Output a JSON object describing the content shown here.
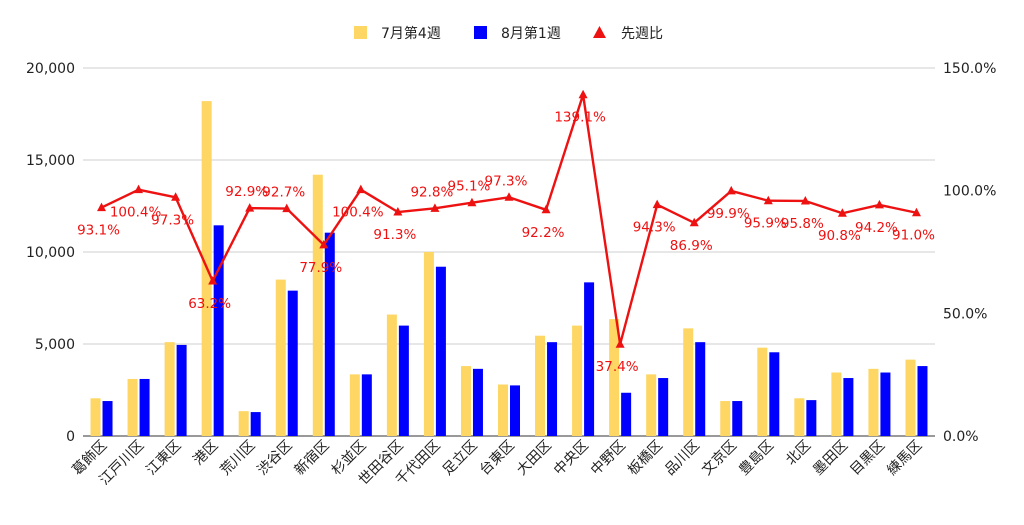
{
  "chart_data": {
    "type": "bar",
    "categories": [
      "葛飾区",
      "江戸川区",
      "江東区",
      "港区",
      "荒川区",
      "渋谷区",
      "新宿区",
      "杉並区",
      "世田谷区",
      "千代田区",
      "足立区",
      "台東区",
      "大田区",
      "中央区",
      "中野区",
      "板橋区",
      "品川区",
      "文京区",
      "豊島区",
      "北区",
      "墨田区",
      "目黒区",
      "練馬区"
    ],
    "series": [
      {
        "name": "7月第4週",
        "type": "bar",
        "axis": "left",
        "color": "#fdd663",
        "values": [
          2050,
          3100,
          5100,
          18200,
          1350,
          8500,
          14200,
          3350,
          6600,
          10000,
          3800,
          2800,
          5450,
          6000,
          6350,
          3350,
          5850,
          1900,
          4800,
          2050,
          3450,
          3650,
          4150
        ]
      },
      {
        "name": "8月第1週",
        "type": "bar",
        "axis": "left",
        "color": "#0000ff",
        "values": [
          1900,
          3100,
          4950,
          11450,
          1300,
          7900,
          11050,
          3350,
          6000,
          9200,
          3650,
          2750,
          5100,
          8350,
          2350,
          3150,
          5100,
          1900,
          4550,
          1950,
          3150,
          3450,
          3800
        ]
      },
      {
        "name": "先週比",
        "type": "line",
        "axis": "right",
        "color": "#ee1111",
        "marker": "triangle",
        "values": [
          93.1,
          100.4,
          97.3,
          63.2,
          92.9,
          92.7,
          77.9,
          100.4,
          91.3,
          92.8,
          95.1,
          97.3,
          92.2,
          139.1,
          37.4,
          94.3,
          86.9,
          99.9,
          95.9,
          95.8,
          90.8,
          94.2,
          91.0
        ],
        "labels": [
          "93.1%",
          "100.4%",
          "97.3%",
          "63.2%",
          "92.9%",
          "92.7%",
          "77.9%",
          "100.4%",
          "91.3%",
          "92.8%",
          "95.1%",
          "97.3%",
          "92.2%",
          "139.1%",
          "37.4%",
          "94.3%",
          "86.9%",
          "99.9%",
          "95.9%",
          "95.8%",
          "90.8%",
          "94.2%",
          "91.0%"
        ]
      }
    ],
    "y_left": {
      "range": [
        0,
        20000
      ],
      "ticks": [
        0,
        5000,
        10000,
        15000,
        20000
      ],
      "tick_labels": [
        "0",
        "5,000",
        "10,000",
        "15,000",
        "20,000"
      ]
    },
    "y_right": {
      "range": [
        0,
        150
      ],
      "ticks": [
        0,
        50,
        100,
        150
      ],
      "tick_labels": [
        "0.0%",
        "50.0%",
        "100.0%",
        "150.0%"
      ]
    },
    "grid": true,
    "legend": "top-center"
  }
}
